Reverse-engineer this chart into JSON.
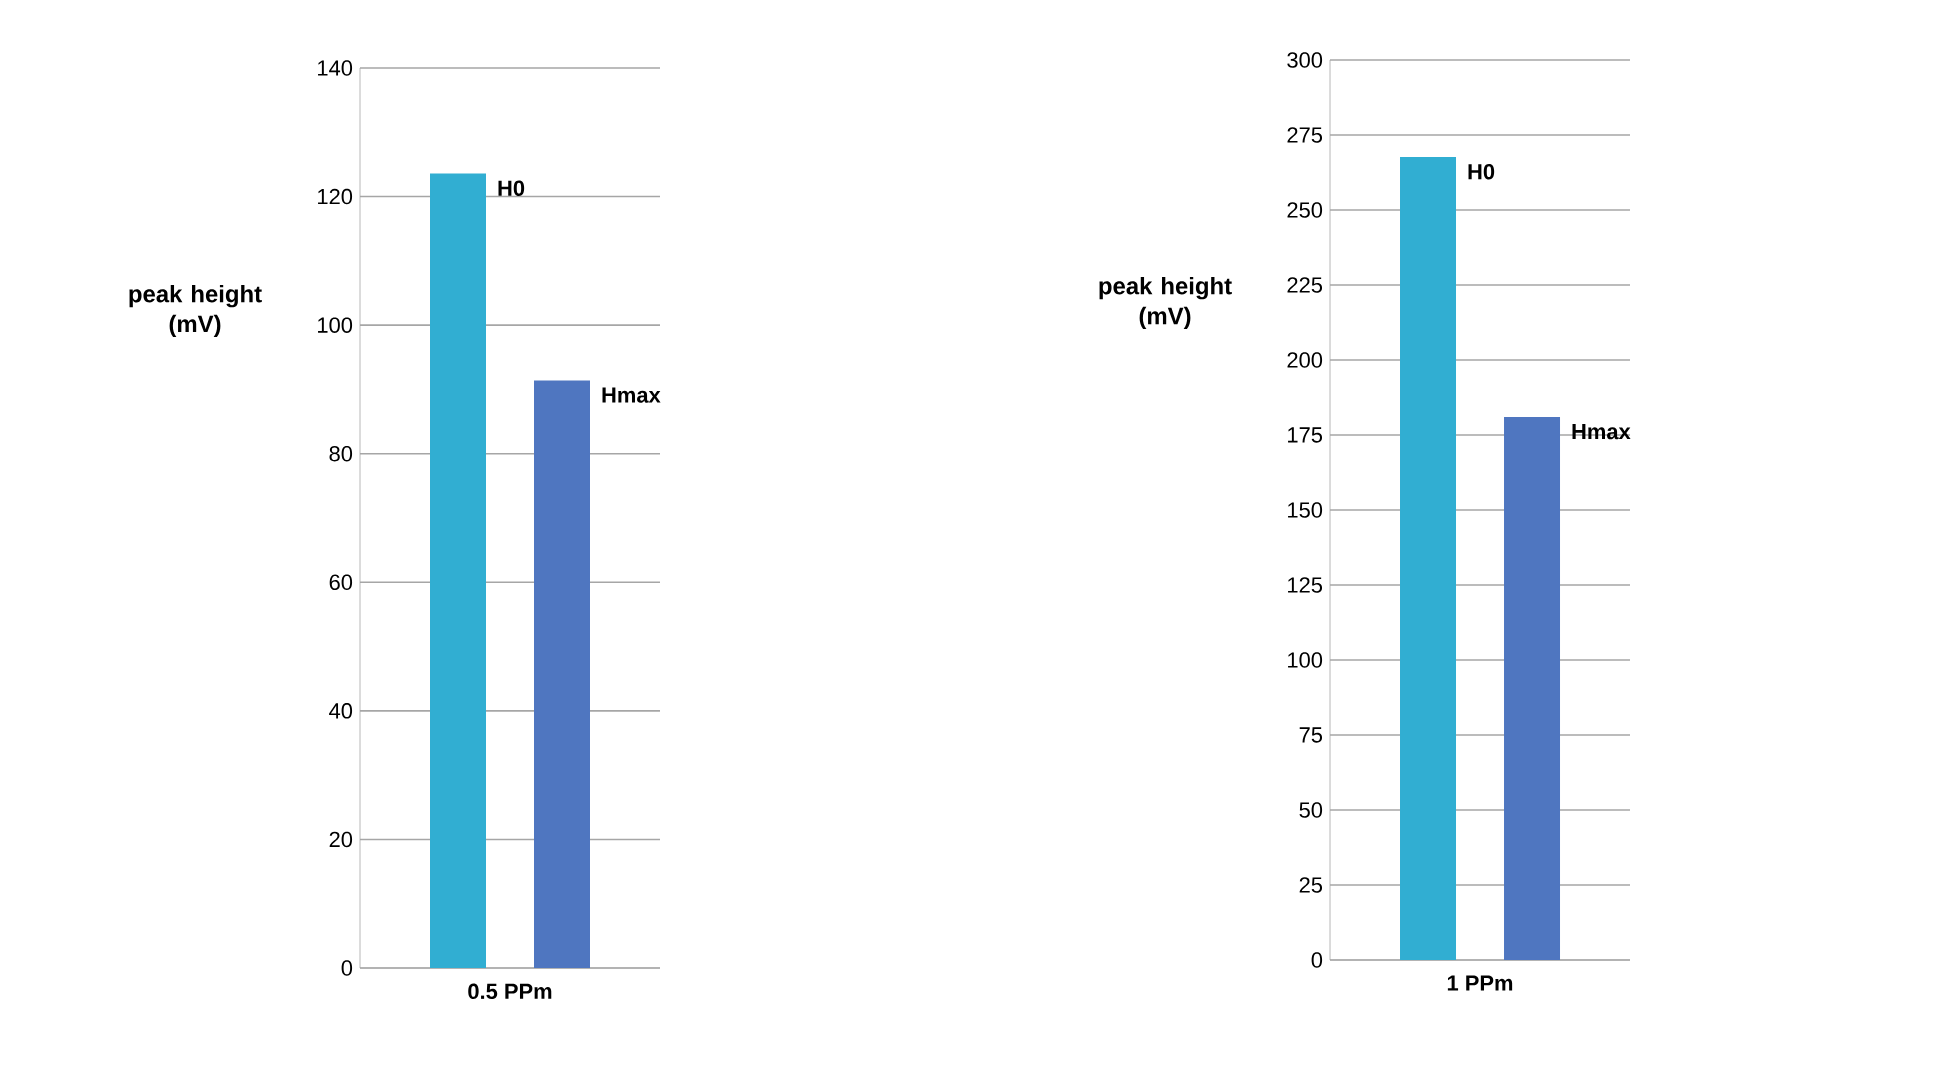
{
  "chart_data": [
    {
      "type": "bar",
      "categories": [
        "0.5 PPm"
      ],
      "ylabel": "peak height (mV)",
      "ylim": [
        0,
        140
      ],
      "yticks": [
        0,
        20,
        40,
        60,
        80,
        100,
        120,
        140
      ],
      "grid": "y",
      "series": [
        {
          "name": "H0",
          "color": "#31aed2",
          "values": [
            123.6
          ]
        },
        {
          "name": "Hmax",
          "color": "#4f76c0",
          "values": [
            91.4
          ]
        }
      ]
    },
    {
      "type": "bar",
      "categories": [
        "1 PPm"
      ],
      "ylabel": "peak height (mV)",
      "ylim": [
        0,
        300
      ],
      "yticks": [
        0,
        25,
        50,
        75,
        100,
        125,
        150,
        175,
        200,
        225,
        250,
        275,
        300
      ],
      "grid": "y",
      "series": [
        {
          "name": "H0",
          "color": "#31aed2",
          "values": [
            267.7
          ]
        },
        {
          "name": "Hmax",
          "color": "#4f76c0",
          "values": [
            181
          ]
        }
      ]
    }
  ]
}
